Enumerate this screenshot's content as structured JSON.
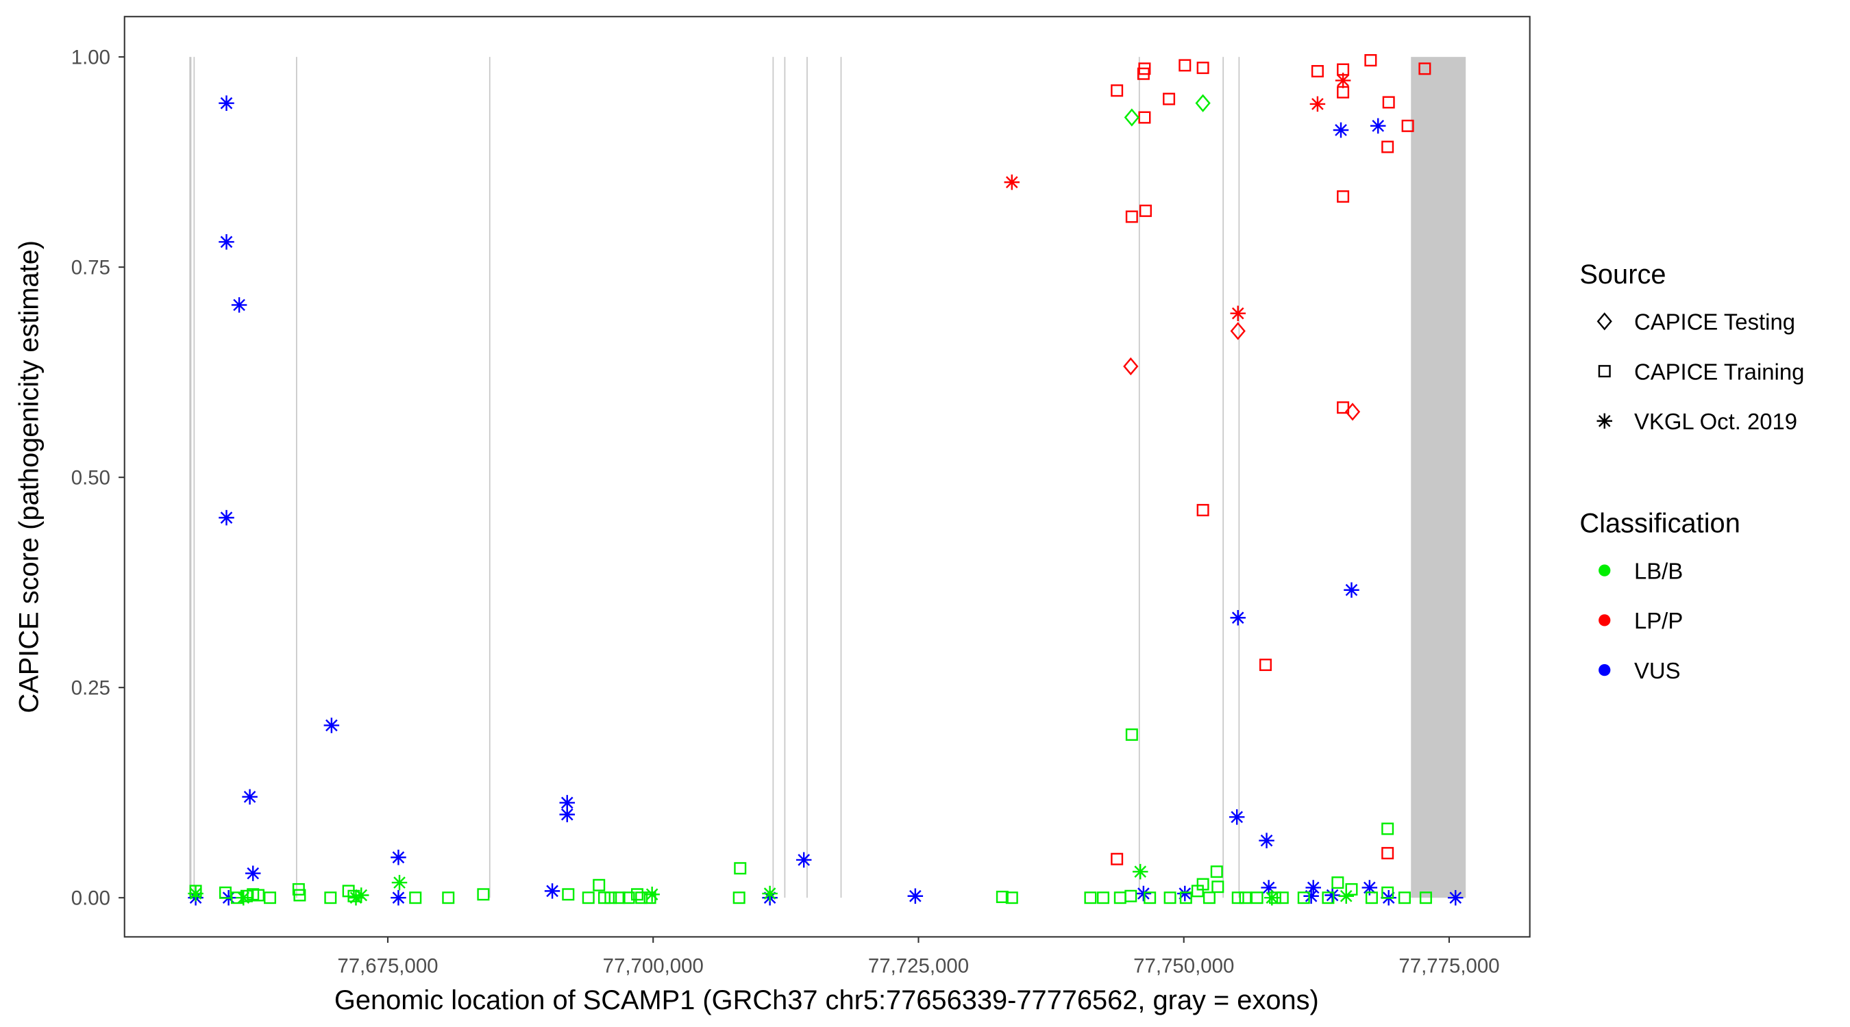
{
  "chart_data": {
    "type": "scatter",
    "xlabel": "Genomic location of SCAMP1 (GRCh37 chr5:77656339-77776562, gray = exons)",
    "ylabel": "CAPICE score (pathogenicity estimate)",
    "xlim": [
      77650000,
      77782500
    ],
    "ylim": [
      -0.045,
      1.05
    ],
    "x_ticks": [
      77675000,
      77700000,
      77725000,
      77750000,
      77775000
    ],
    "x_tick_labels": [
      "77,675,000",
      "77,700,000",
      "77,725,000",
      "77,750,000",
      "77,775,000"
    ],
    "y_ticks": [
      0,
      0.25,
      0.5,
      0.75,
      1.0
    ],
    "y_tick_labels": [
      "0.00",
      "0.25",
      "0.50",
      "0.75",
      "1.00"
    ],
    "grid": false,
    "legend_placement": "right",
    "legend": {
      "source_title": "Source",
      "sources": [
        {
          "key": "testing",
          "label": "CAPICE Testing",
          "shape": "diamond"
        },
        {
          "key": "training",
          "label": "CAPICE Training",
          "shape": "square"
        },
        {
          "key": "vkgl",
          "label": "VKGL Oct. 2019",
          "shape": "asterisk"
        }
      ],
      "class_title": "Classification",
      "classes": [
        {
          "key": "LB/B",
          "label": "LB/B",
          "color": "#00ee00"
        },
        {
          "key": "LP/P",
          "label": "LP/P",
          "color": "#ff0000"
        },
        {
          "key": "VUS",
          "label": "VUS",
          "color": "#0000ff"
        }
      ]
    },
    "exon_color": "#c8c8c8",
    "exons": [
      [
        77656300,
        77656500
      ],
      [
        77656700,
        77656800
      ],
      [
        77666350,
        77666450
      ],
      [
        77684550,
        77684650
      ],
      [
        77711250,
        77711350
      ],
      [
        77712350,
        77712450
      ],
      [
        77714450,
        77714550
      ],
      [
        77717650,
        77717750
      ],
      [
        77745750,
        77745850
      ],
      [
        77753650,
        77753750
      ],
      [
        77755150,
        77755250
      ],
      [
        77771400,
        77776562
      ]
    ],
    "series": [
      {
        "source": "vkgl",
        "class": "VUS",
        "points": [
          [
            77659800,
            0.945
          ],
          [
            77659800,
            0.78
          ],
          [
            77661000,
            0.705
          ],
          [
            77659800,
            0.452
          ],
          [
            77669700,
            0.205
          ],
          [
            77662000,
            0.12
          ],
          [
            77662300,
            0.029
          ],
          [
            77676000,
            0.048
          ],
          [
            77691900,
            0.113
          ],
          [
            77691900,
            0.099
          ],
          [
            77690500,
            0.008
          ],
          [
            77714200,
            0.045
          ],
          [
            77711000,
            0.0
          ],
          [
            77724700,
            0.002
          ],
          [
            77656900,
            0.0
          ],
          [
            77660000,
            0.0
          ],
          [
            77676000,
            0.0
          ],
          [
            77746200,
            0.005
          ],
          [
            77750100,
            0.005
          ],
          [
            77755100,
            0.333
          ],
          [
            77755000,
            0.096
          ],
          [
            77757800,
            0.068
          ],
          [
            77758000,
            0.012
          ],
          [
            77762200,
            0.012
          ],
          [
            77762000,
            0.002
          ],
          [
            77764000,
            0.003
          ],
          [
            77764800,
            0.913
          ],
          [
            77768300,
            0.918
          ],
          [
            77765800,
            0.366
          ],
          [
            77767500,
            0.012
          ],
          [
            77769300,
            0.0
          ],
          [
            77775600,
            0.0
          ]
        ]
      },
      {
        "source": "vkgl",
        "class": "LP/P",
        "points": [
          [
            77733800,
            0.851
          ],
          [
            77755100,
            0.695
          ],
          [
            77762600,
            0.944
          ],
          [
            77765000,
            0.972
          ]
        ]
      },
      {
        "source": "vkgl",
        "class": "LB/B",
        "points": [
          [
            77676100,
            0.018
          ],
          [
            77745900,
            0.031
          ],
          [
            77711000,
            0.005
          ],
          [
            77672500,
            0.003
          ],
          [
            77699900,
            0.004
          ],
          [
            77758300,
            0.0
          ],
          [
            77765300,
            0.002
          ],
          [
            77656900,
            0.005
          ],
          [
            77661400,
            0.0
          ],
          [
            77672000,
            0.0
          ]
        ]
      },
      {
        "source": "training",
        "class": "LP/P",
        "points": [
          [
            77743700,
            0.96
          ],
          [
            77746300,
            0.986
          ],
          [
            77746200,
            0.98
          ],
          [
            77750100,
            0.99
          ],
          [
            77751800,
            0.987
          ],
          [
            77746300,
            0.928
          ],
          [
            77748600,
            0.95
          ],
          [
            77745100,
            0.81
          ],
          [
            77746400,
            0.817
          ],
          [
            77751800,
            0.461
          ],
          [
            77757700,
            0.277
          ],
          [
            77743700,
            0.046
          ],
          [
            77762600,
            0.983
          ],
          [
            77765000,
            0.985
          ],
          [
            77765000,
            0.958
          ],
          [
            77767600,
            0.996
          ],
          [
            77769300,
            0.946
          ],
          [
            77772700,
            0.986
          ],
          [
            77771100,
            0.918
          ],
          [
            77769200,
            0.893
          ],
          [
            77765000,
            0.834
          ],
          [
            77765000,
            0.583
          ],
          [
            77769200,
            0.053
          ]
        ]
      },
      {
        "source": "testing",
        "class": "LP/P",
        "points": [
          [
            77745000,
            0.632
          ],
          [
            77755100,
            0.674
          ],
          [
            77765900,
            0.578
          ]
        ]
      },
      {
        "source": "testing",
        "class": "LB/B",
        "points": [
          [
            77745100,
            0.928
          ],
          [
            77751800,
            0.945
          ]
        ]
      },
      {
        "source": "training",
        "class": "LB/B",
        "points": [
          [
            77745100,
            0.194
          ],
          [
            77769200,
            0.082
          ],
          [
            77708200,
            0.035
          ],
          [
            77753100,
            0.031
          ],
          [
            77694900,
            0.015
          ],
          [
            77764500,
            0.018
          ],
          [
            77751800,
            0.016
          ],
          [
            77656900,
            0.008
          ],
          [
            77659700,
            0.006
          ],
          [
            77660800,
            0.0
          ],
          [
            77661700,
            0.002
          ],
          [
            77662300,
            0.004
          ],
          [
            77662800,
            0.003
          ],
          [
            77663900,
            0.0
          ],
          [
            77666600,
            0.01
          ],
          [
            77666700,
            0.003
          ],
          [
            77669600,
            0.0
          ],
          [
            77671300,
            0.008
          ],
          [
            77671800,
            0.002
          ],
          [
            77677600,
            0.0
          ],
          [
            77680700,
            0.0
          ],
          [
            77684000,
            0.004
          ],
          [
            77692000,
            0.004
          ],
          [
            77693900,
            0.0
          ],
          [
            77695400,
            0.0
          ],
          [
            77696000,
            0.0
          ],
          [
            77696800,
            0.0
          ],
          [
            77697700,
            0.0
          ],
          [
            77698500,
            0.004
          ],
          [
            77698900,
            0.0
          ],
          [
            77699700,
            0.0
          ],
          [
            77708100,
            0.0
          ],
          [
            77732900,
            0.001
          ],
          [
            77733800,
            0.0
          ],
          [
            77741200,
            0.0
          ],
          [
            77742400,
            0.0
          ],
          [
            77744000,
            0.0
          ],
          [
            77745000,
            0.002
          ],
          [
            77746800,
            0.0
          ],
          [
            77748700,
            0.0
          ],
          [
            77750200,
            0.0
          ],
          [
            77751300,
            0.008
          ],
          [
            77752400,
            0.0
          ],
          [
            77753200,
            0.013
          ],
          [
            77755100,
            0.0
          ],
          [
            77755800,
            0.0
          ],
          [
            77756900,
            0.0
          ],
          [
            77758600,
            0.0
          ],
          [
            77759300,
            0.0
          ],
          [
            77761300,
            0.0
          ],
          [
            77763600,
            0.0
          ],
          [
            77765800,
            0.01
          ],
          [
            77767700,
            0.0
          ],
          [
            77769200,
            0.006
          ],
          [
            77770800,
            0.0
          ],
          [
            77772800,
            0.0
          ]
        ]
      }
    ]
  }
}
